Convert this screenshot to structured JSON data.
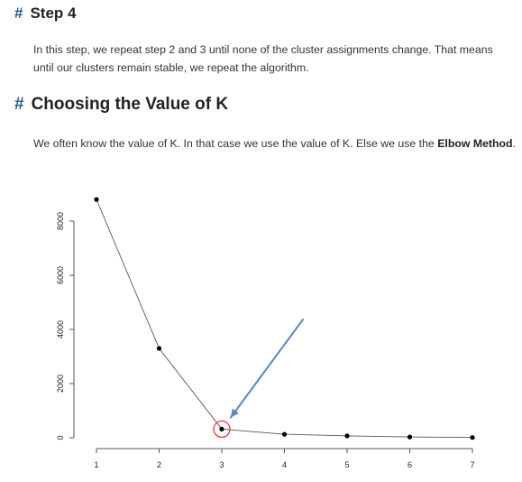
{
  "step4": {
    "hash": "#",
    "title": "Step 4",
    "body": "In this step, we repeat step 2 and 3 until none of the cluster assignments change. That means until our clusters remain stable, we repeat the algorithm."
  },
  "choosing_k": {
    "hash": "#",
    "title": "Choosing the Value of K",
    "body_prefix": "We often know the value of K. In that case we use the value of K. Else we use the ",
    "body_bold": "Elbow Method",
    "body_suffix": "."
  },
  "chart_data": {
    "type": "line",
    "title": "",
    "xlabel": "",
    "ylabel": "",
    "x": [
      1,
      2,
      3,
      4,
      5,
      6,
      7
    ],
    "y": [
      8800,
      3300,
      320,
      130,
      70,
      30,
      10
    ],
    "xlim": [
      1,
      7
    ],
    "ylim": [
      0,
      8000
    ],
    "x_ticks": [
      1,
      2,
      3,
      4,
      5,
      6,
      7
    ],
    "y_ticks": [
      0,
      2000,
      4000,
      6000,
      8000
    ],
    "grid": false,
    "line_color": "#555555",
    "point_color": "#000000",
    "highlight": {
      "x": 3,
      "circle_color": "#e03c3c",
      "arrow_color": "#5b86c0"
    }
  }
}
